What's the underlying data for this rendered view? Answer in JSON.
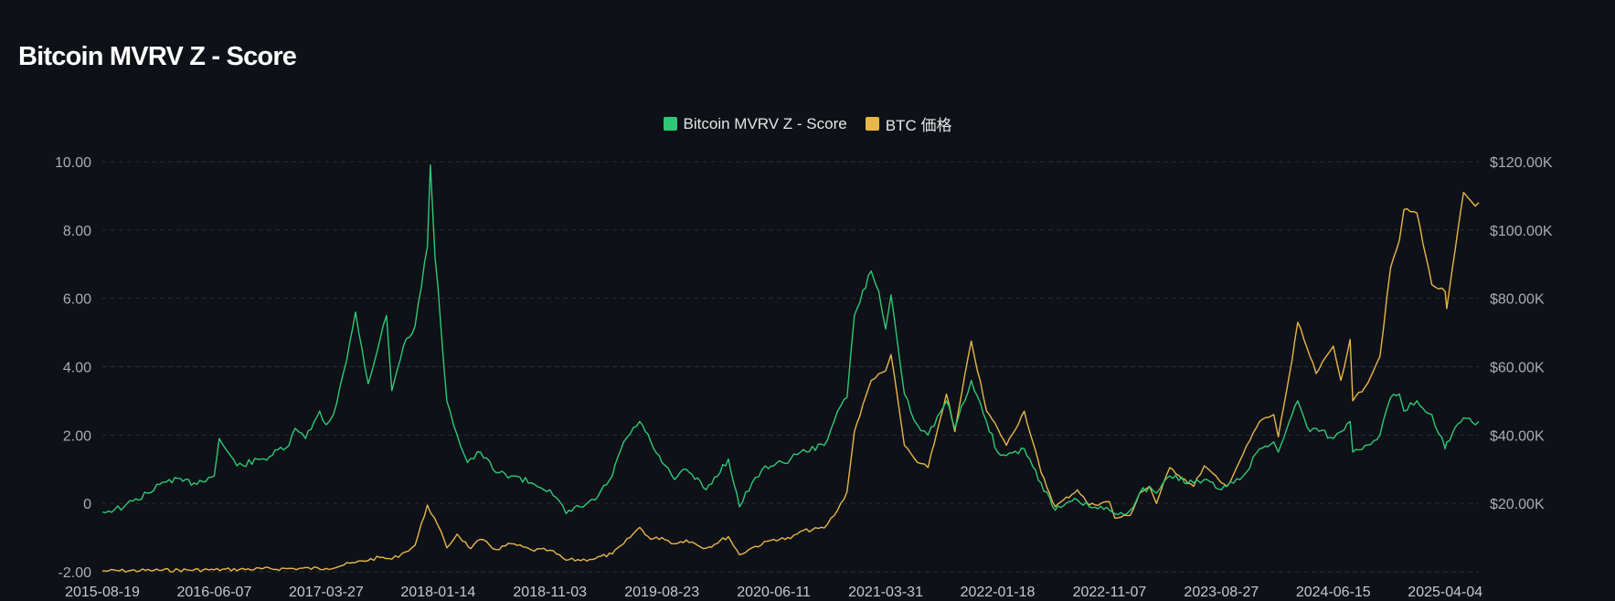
{
  "colors": {
    "background": "#0e1117",
    "mvrv": "#2fc878",
    "btc": "#e8b64a",
    "grid": "#2a2e36"
  },
  "chart_data": {
    "type": "line",
    "title": "Bitcoin MVRV Z - Score",
    "legend_position": "top-center",
    "grid": true,
    "x_ticks": [
      "2015-08-19",
      "2016-06-07",
      "2017-03-27",
      "2018-01-14",
      "2018-11-03",
      "2019-08-23",
      "2020-06-11",
      "2021-03-31",
      "2022-01-18",
      "2022-11-07",
      "2023-08-27",
      "2024-06-15",
      "2025-04-04"
    ],
    "x_range": [
      "2015-08-19",
      "2025-07-01"
    ],
    "y_left": {
      "range": [
        -2,
        10
      ],
      "ticks": [
        -2,
        0,
        2,
        4,
        6,
        8,
        10
      ],
      "tick_labels": [
        "-2.00",
        "0",
        "2.00",
        "4.00",
        "6.00",
        "8.00",
        "10.00"
      ]
    },
    "y_right": {
      "range": [
        0,
        120000
      ],
      "ticks": [
        20000,
        40000,
        60000,
        80000,
        100000,
        120000
      ],
      "tick_labels": [
        "$20.00K",
        "$40.00K",
        "$60.00K",
        "$80.00K",
        "$100.00K",
        "$120.00K"
      ]
    },
    "series": [
      {
        "name": "Bitcoin MVRV Z - Score",
        "axis": "left",
        "color": "#2fc878",
        "x": [
          "2015-08-19",
          "2015-10-15",
          "2015-12-15",
          "2016-02-10",
          "2016-04-15",
          "2016-06-07",
          "2016-06-20",
          "2016-08-05",
          "2016-10-15",
          "2016-12-20",
          "2017-01-05",
          "2017-02-01",
          "2017-03-10",
          "2017-03-27",
          "2017-04-15",
          "2017-05-20",
          "2017-06-12",
          "2017-07-15",
          "2017-08-15",
          "2017-09-01",
          "2017-09-15",
          "2017-10-15",
          "2017-11-15",
          "2017-12-17",
          "2017-12-25",
          "2018-01-06",
          "2018-01-14",
          "2018-02-06",
          "2018-03-05",
          "2018-04-01",
          "2018-05-05",
          "2018-06-15",
          "2018-08-01",
          "2018-09-15",
          "2018-11-03",
          "2018-12-15",
          "2019-01-20",
          "2019-03-01",
          "2019-04-15",
          "2019-05-15",
          "2019-06-26",
          "2019-07-25",
          "2019-08-23",
          "2019-09-25",
          "2019-10-26",
          "2019-12-17",
          "2020-02-13",
          "2020-03-13",
          "2020-04-15",
          "2020-05-20",
          "2020-06-11",
          "2020-07-25",
          "2020-08-20",
          "2020-10-21",
          "2020-11-25",
          "2020-12-20",
          "2021-01-08",
          "2021-02-21",
          "2021-03-13",
          "2021-03-31",
          "2021-04-14",
          "2021-05-19",
          "2021-06-22",
          "2021-07-20",
          "2021-09-06",
          "2021-09-28",
          "2021-11-10",
          "2021-12-20",
          "2022-01-18",
          "2022-02-10",
          "2022-03-29",
          "2022-05-12",
          "2022-06-18",
          "2022-08-15",
          "2022-09-15",
          "2022-11-07",
          "2022-11-21",
          "2022-12-31",
          "2023-01-25",
          "2023-02-20",
          "2023-03-10",
          "2023-04-14",
          "2023-06-15",
          "2023-07-13",
          "2023-08-27",
          "2023-09-11",
          "2023-10-23",
          "2023-12-05",
          "2024-01-11",
          "2024-01-23",
          "2024-02-28",
          "2024-03-14",
          "2024-04-15",
          "2024-05-01",
          "2024-06-15",
          "2024-07-05",
          "2024-07-29",
          "2024-08-05",
          "2024-09-06",
          "2024-10-15",
          "2024-11-12",
          "2024-12-05",
          "2024-12-17",
          "2025-01-20",
          "2025-02-28",
          "2025-04-04",
          "2025-04-08",
          "2025-05-22",
          "2025-06-22",
          "2025-07-01"
        ],
        "values": [
          -0.25,
          -0.1,
          0.3,
          0.7,
          0.6,
          0.8,
          1.9,
          1.1,
          1.3,
          1.7,
          2.2,
          1.9,
          2.7,
          2.3,
          2.6,
          4.2,
          5.6,
          3.5,
          4.8,
          5.5,
          3.3,
          4.6,
          5.2,
          7.5,
          9.9,
          7.2,
          6.3,
          3.0,
          2.0,
          1.2,
          1.5,
          0.9,
          0.8,
          0.6,
          0.4,
          -0.3,
          -0.1,
          0.1,
          0.8,
          1.8,
          2.4,
          1.8,
          1.2,
          0.7,
          1.0,
          0.4,
          1.3,
          -0.1,
          0.6,
          1.1,
          1.1,
          1.3,
          1.5,
          1.7,
          2.7,
          3.1,
          5.5,
          6.8,
          6.2,
          5.1,
          6.1,
          3.2,
          2.3,
          2.0,
          3.0,
          2.2,
          3.6,
          2.4,
          1.5,
          1.4,
          1.6,
          0.6,
          -0.2,
          0.1,
          -0.1,
          -0.2,
          -0.3,
          -0.2,
          0.3,
          0.5,
          0.3,
          0.8,
          0.6,
          0.7,
          0.4,
          0.5,
          0.8,
          1.6,
          1.8,
          1.5,
          2.6,
          3.0,
          2.1,
          2.2,
          1.9,
          2.1,
          2.4,
          1.5,
          1.7,
          2.0,
          3.1,
          3.2,
          2.7,
          3.0,
          2.6,
          1.6,
          1.8,
          2.5,
          2.3,
          2.4
        ]
      },
      {
        "name": "BTC 価格",
        "axis": "right",
        "color": "#e8b64a",
        "x": [
          "2015-08-19",
          "2016-01-01",
          "2016-06-07",
          "2016-12-31",
          "2017-03-27",
          "2017-06-12",
          "2017-08-15",
          "2017-09-15",
          "2017-10-20",
          "2017-11-15",
          "2017-12-17",
          "2018-01-14",
          "2018-02-06",
          "2018-03-05",
          "2018-04-10",
          "2018-05-05",
          "2018-06-15",
          "2018-07-25",
          "2018-09-15",
          "2018-11-03",
          "2018-12-15",
          "2019-02-15",
          "2019-04-15",
          "2019-05-15",
          "2019-06-26",
          "2019-07-25",
          "2019-08-23",
          "2019-09-25",
          "2019-10-26",
          "2019-12-17",
          "2020-02-13",
          "2020-03-13",
          "2020-04-15",
          "2020-06-11",
          "2020-07-25",
          "2020-08-20",
          "2020-10-21",
          "2020-11-25",
          "2020-12-20",
          "2021-01-08",
          "2021-02-21",
          "2021-03-13",
          "2021-03-31",
          "2021-04-14",
          "2021-05-19",
          "2021-06-22",
          "2021-07-20",
          "2021-09-06",
          "2021-09-28",
          "2021-11-10",
          "2021-12-20",
          "2022-01-18",
          "2022-02-10",
          "2022-03-29",
          "2022-05-12",
          "2022-06-18",
          "2022-08-15",
          "2022-09-15",
          "2022-11-07",
          "2022-11-21",
          "2022-12-31",
          "2023-01-25",
          "2023-02-20",
          "2023-03-10",
          "2023-04-14",
          "2023-06-15",
          "2023-07-13",
          "2023-08-27",
          "2023-09-11",
          "2023-10-23",
          "2023-12-05",
          "2024-01-11",
          "2024-01-23",
          "2024-02-28",
          "2024-03-14",
          "2024-04-15",
          "2024-05-01",
          "2024-06-15",
          "2024-07-05",
          "2024-07-29",
          "2024-08-05",
          "2024-09-06",
          "2024-10-15",
          "2024-11-12",
          "2024-12-05",
          "2024-12-17",
          "2025-01-20",
          "2025-02-28",
          "2025-04-04",
          "2025-04-08",
          "2025-05-22",
          "2025-06-22",
          "2025-07-01"
        ],
        "values": [
          230,
          430,
          580,
          960,
          1000,
          2700,
          4200,
          3700,
          5800,
          7800,
          19500,
          13500,
          7000,
          11000,
          6800,
          9500,
          6500,
          8200,
          6400,
          6300,
          3400,
          3600,
          5200,
          8200,
          13000,
          9500,
          10000,
          8200,
          9300,
          6900,
          10300,
          5000,
          7000,
          9500,
          9700,
          11800,
          12800,
          18000,
          23500,
          41000,
          56000,
          58000,
          58800,
          63500,
          37000,
          32000,
          30500,
          52000,
          41000,
          67500,
          47000,
          42000,
          37000,
          47000,
          29000,
          19000,
          24000,
          19500,
          20500,
          15700,
          16500,
          23000,
          25000,
          20000,
          30500,
          25000,
          31000,
          26000,
          25000,
          34500,
          44000,
          46000,
          39500,
          62000,
          73000,
          63000,
          58000,
          66000,
          56000,
          68000,
          50000,
          54000,
          63000,
          89000,
          97000,
          106000,
          105000,
          84000,
          82000,
          77000,
          111000,
          107000,
          108000
        ]
      }
    ]
  }
}
